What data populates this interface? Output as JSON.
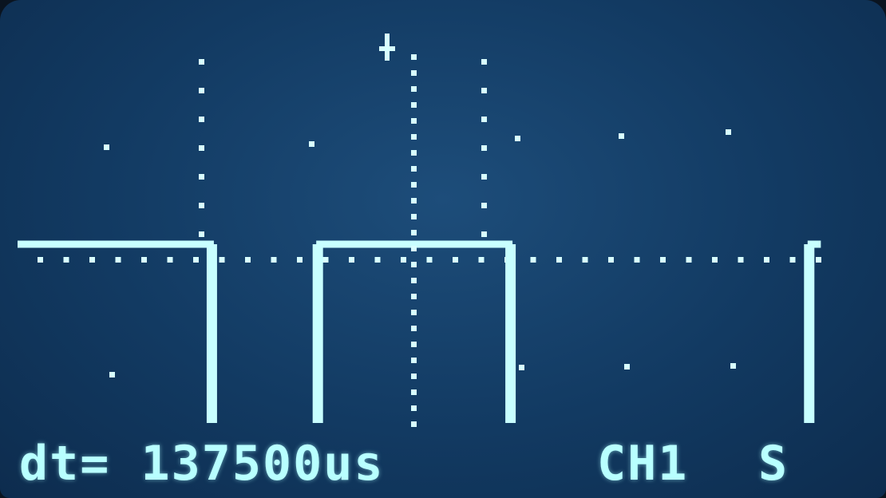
{
  "display": {
    "background_color": "#154270",
    "trace_color": "#c8ffff",
    "dot_color": "#d8ffff"
  },
  "status_bar": {
    "dt_readout": "dt= 137500us",
    "channel": "CH1",
    "trigger_mode": "S"
  },
  "markers": {
    "trigger_icon": "plus-icon",
    "cursor_icon": "dotted-vertical-cursor"
  },
  "chart_data": {
    "type": "line",
    "title": "",
    "xlabel": "",
    "ylabel": "",
    "series": [
      {
        "x": [
          0,
          2,
          2,
          3.1,
          3.1,
          5.1,
          5.1,
          8.2,
          8.2,
          8.3
        ],
        "values": [
          1,
          1,
          0,
          0,
          1,
          1,
          0,
          0,
          1,
          1
        ]
      }
    ],
    "xlim": [
      0,
      8.5
    ],
    "ylim": [
      0,
      1
    ],
    "grid": "dotted"
  }
}
